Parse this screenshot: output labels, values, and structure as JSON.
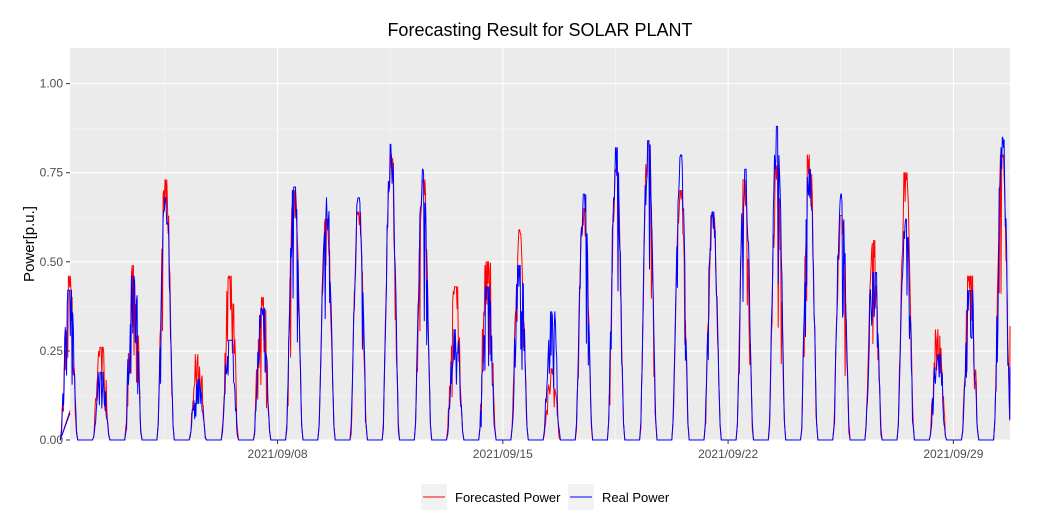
{
  "chart_data": {
    "type": "line",
    "title": "Forecasting Result for SOLAR PLANT",
    "xlabel": "",
    "ylabel": "Power[p.u.]",
    "x_axis": {
      "type": "date",
      "start": "2021/09/01",
      "end": "2021/09/30",
      "ticks": [
        {
          "date": "2021/09/08",
          "label": "2021/09/08"
        },
        {
          "date": "2021/09/15",
          "label": "2021/09/15"
        },
        {
          "date": "2021/09/22",
          "label": "2021/09/22"
        },
        {
          "date": "2021/09/29",
          "label": "2021/09/29"
        }
      ]
    },
    "y_axis": {
      "ylim": [
        0,
        1.1
      ],
      "ticks": [
        {
          "value": 0,
          "label": "0.00"
        },
        {
          "value": 0.25,
          "label": "0.25"
        },
        {
          "value": 0.5,
          "label": "0.50"
        },
        {
          "value": 0.75,
          "label": "0.75"
        },
        {
          "value": 1.0,
          "label": "1.00"
        }
      ]
    },
    "grid": true,
    "legend": {
      "placement": "bottom"
    },
    "series": [
      {
        "name": "Forecasted Power",
        "color": "#ff0000",
        "daily_peaks": [
          {
            "date": "2021/09/01",
            "value": 0.46
          },
          {
            "date": "2021/09/02",
            "value": 0.26
          },
          {
            "date": "2021/09/03",
            "value": 0.49
          },
          {
            "date": "2021/09/04",
            "value": 0.73
          },
          {
            "date": "2021/09/05",
            "value": 0.24
          },
          {
            "date": "2021/09/06",
            "value": 0.46
          },
          {
            "date": "2021/09/07",
            "value": 0.4
          },
          {
            "date": "2021/09/08",
            "value": 0.7
          },
          {
            "date": "2021/09/09",
            "value": 0.62
          },
          {
            "date": "2021/09/10",
            "value": 0.64
          },
          {
            "date": "2021/09/11",
            "value": 0.8
          },
          {
            "date": "2021/09/12",
            "value": 0.73
          },
          {
            "date": "2021/09/13",
            "value": 0.43
          },
          {
            "date": "2021/09/14",
            "value": 0.5
          },
          {
            "date": "2021/09/15",
            "value": 0.59
          },
          {
            "date": "2021/09/16",
            "value": 0.2
          },
          {
            "date": "2021/09/17",
            "value": 0.65
          },
          {
            "date": "2021/09/18",
            "value": 0.76
          },
          {
            "date": "2021/09/19",
            "value": 0.84
          },
          {
            "date": "2021/09/20",
            "value": 0.7
          },
          {
            "date": "2021/09/21",
            "value": 0.63
          },
          {
            "date": "2021/09/22",
            "value": 0.73
          },
          {
            "date": "2021/09/23",
            "value": 0.77
          },
          {
            "date": "2021/09/24",
            "value": 0.8
          },
          {
            "date": "2021/09/25",
            "value": 0.63
          },
          {
            "date": "2021/09/26",
            "value": 0.56
          },
          {
            "date": "2021/09/27",
            "value": 0.75
          },
          {
            "date": "2021/09/28",
            "value": 0.31
          },
          {
            "date": "2021/09/29",
            "value": 0.46
          },
          {
            "date": "2021/09/30",
            "value": 0.8
          }
        ]
      },
      {
        "name": "Real Power",
        "color": "#0000ff",
        "daily_peaks": [
          {
            "date": "2021/09/01",
            "value": 0.42
          },
          {
            "date": "2021/09/02",
            "value": 0.19
          },
          {
            "date": "2021/09/03",
            "value": 0.46
          },
          {
            "date": "2021/09/04",
            "value": 0.68
          },
          {
            "date": "2021/09/05",
            "value": 0.17
          },
          {
            "date": "2021/09/06",
            "value": 0.28
          },
          {
            "date": "2021/09/07",
            "value": 0.37
          },
          {
            "date": "2021/09/08",
            "value": 0.71
          },
          {
            "date": "2021/09/09",
            "value": 0.68
          },
          {
            "date": "2021/09/10",
            "value": 0.68
          },
          {
            "date": "2021/09/11",
            "value": 0.83
          },
          {
            "date": "2021/09/12",
            "value": 0.76
          },
          {
            "date": "2021/09/13",
            "value": 0.31
          },
          {
            "date": "2021/09/14",
            "value": 0.43
          },
          {
            "date": "2021/09/15",
            "value": 0.49
          },
          {
            "date": "2021/09/16",
            "value": 0.36
          },
          {
            "date": "2021/09/17",
            "value": 0.69
          },
          {
            "date": "2021/09/18",
            "value": 0.82
          },
          {
            "date": "2021/09/19",
            "value": 0.84
          },
          {
            "date": "2021/09/20",
            "value": 0.8
          },
          {
            "date": "2021/09/21",
            "value": 0.64
          },
          {
            "date": "2021/09/22",
            "value": 0.76
          },
          {
            "date": "2021/09/23",
            "value": 0.88
          },
          {
            "date": "2021/09/24",
            "value": 0.76
          },
          {
            "date": "2021/09/25",
            "value": 0.69
          },
          {
            "date": "2021/09/26",
            "value": 0.47
          },
          {
            "date": "2021/09/27",
            "value": 0.62
          },
          {
            "date": "2021/09/28",
            "value": 0.24
          },
          {
            "date": "2021/09/29",
            "value": 0.42
          },
          {
            "date": "2021/09/30",
            "value": 0.85
          }
        ]
      }
    ]
  }
}
